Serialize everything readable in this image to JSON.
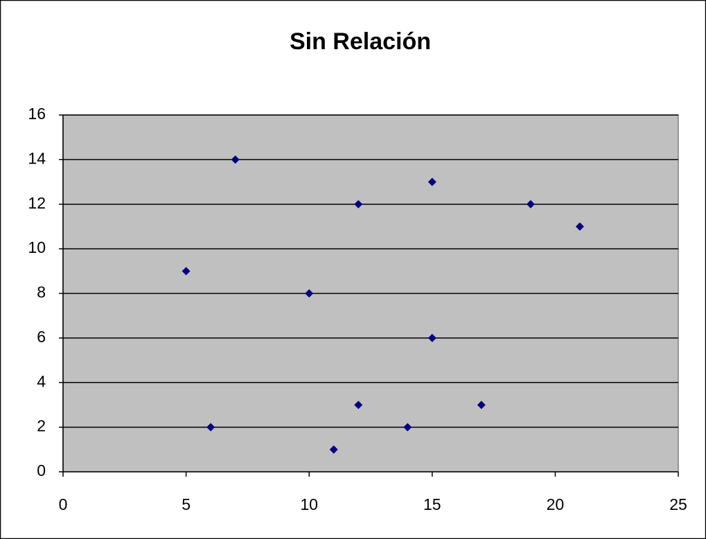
{
  "chart_data": {
    "type": "scatter",
    "title": "Sin Relación",
    "series": [
      {
        "color": "#000080",
        "x": [
          5,
          6,
          7,
          10,
          11,
          12,
          12,
          14,
          15,
          15,
          17,
          19,
          21
        ],
        "values": [
          9,
          2,
          14,
          8,
          1,
          12,
          3,
          2,
          13,
          6,
          3,
          12,
          11
        ]
      }
    ],
    "xlim": [
      0,
      25
    ],
    "xticks": [
      0,
      5,
      10,
      15,
      20,
      25
    ],
    "ylim": [
      0,
      16
    ],
    "yticks": [
      0,
      2,
      4,
      6,
      8,
      10,
      12,
      14,
      16
    ],
    "grid": true,
    "plot_background": "#c0c0c0"
  }
}
